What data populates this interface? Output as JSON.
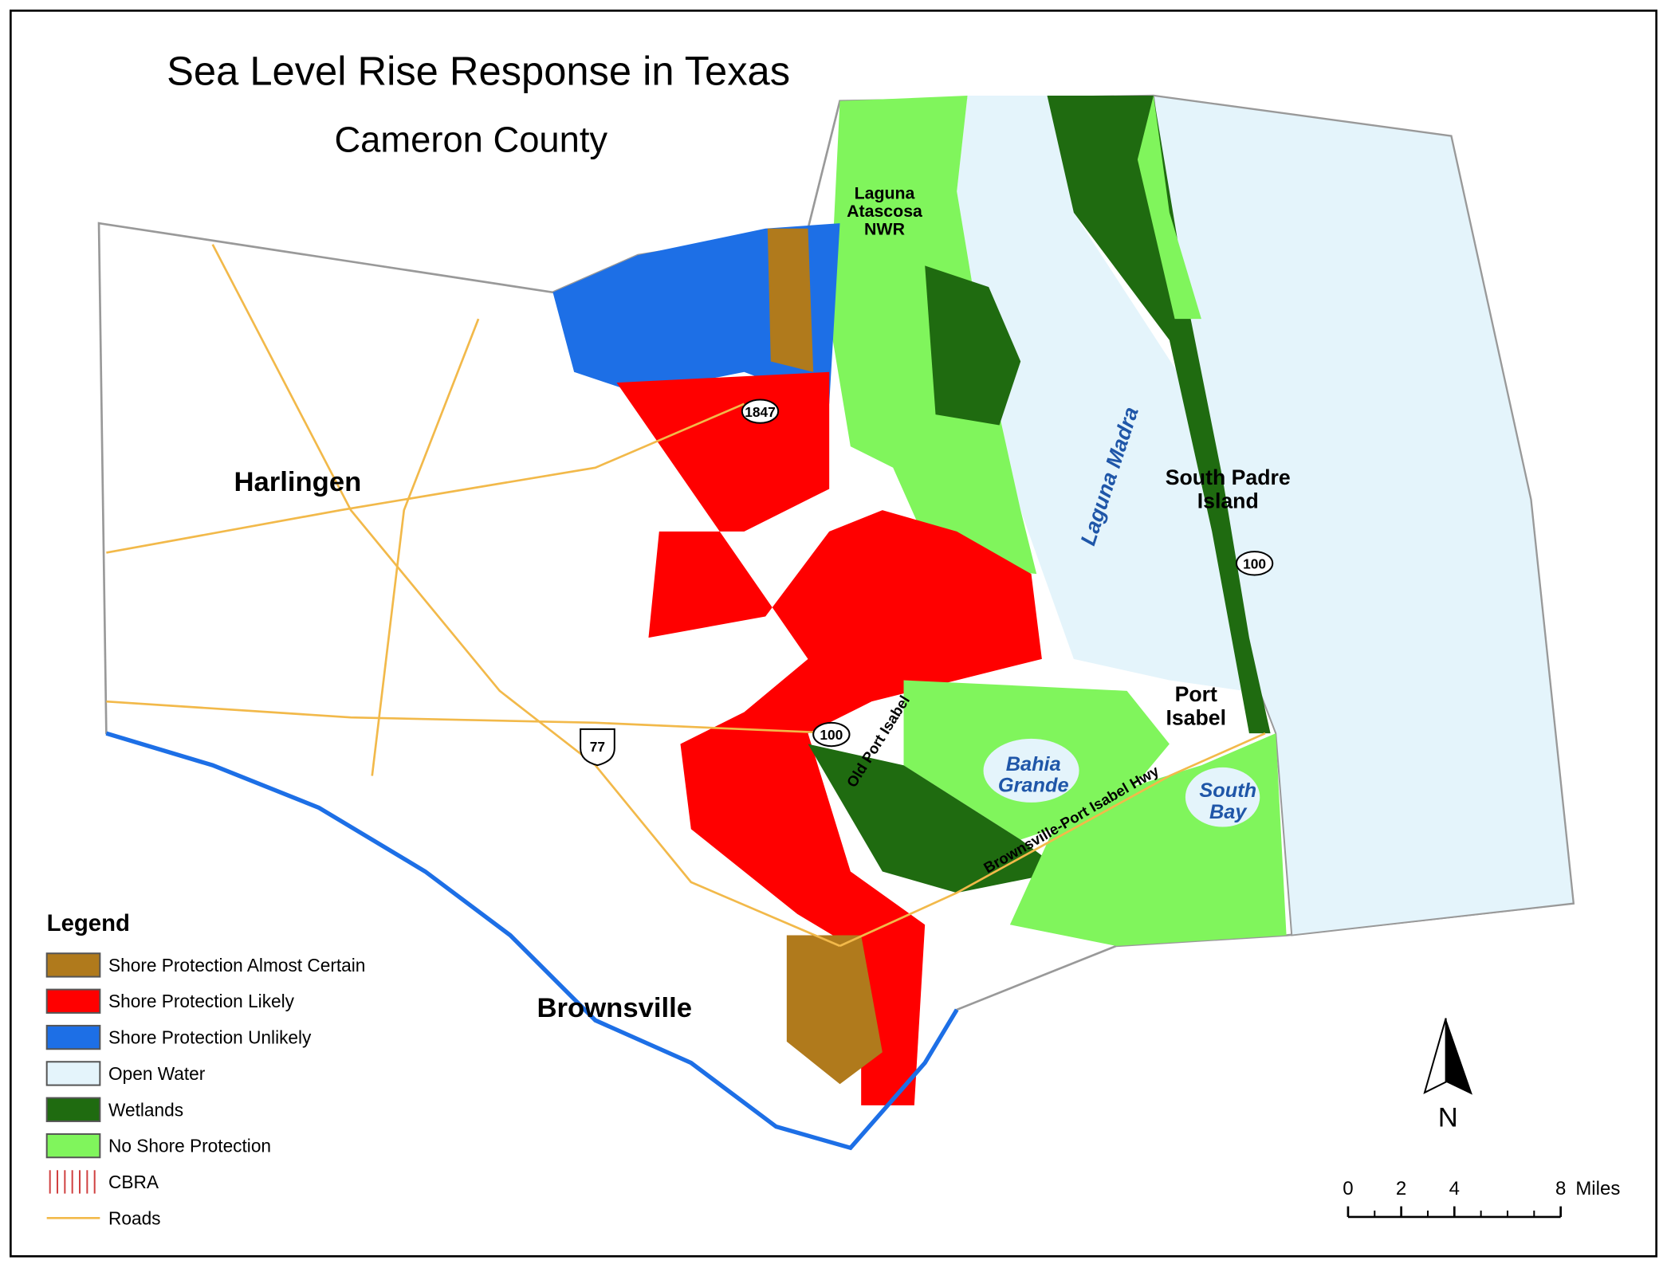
{
  "header": {
    "title": "Sea Level Rise Response in Texas",
    "subtitle": "Cameron County"
  },
  "places": [
    {
      "lines": [
        "Harlingen"
      ],
      "kind": "city"
    },
    {
      "lines": [
        "Brownsville"
      ],
      "kind": "city"
    },
    {
      "lines": [
        "Laguna",
        "Atascosa",
        "NWR"
      ],
      "kind": "area"
    },
    {
      "lines": [
        "South Padre",
        "Island"
      ],
      "kind": "area"
    },
    {
      "lines": [
        "Port",
        "Isabel"
      ],
      "kind": "town"
    },
    {
      "lines": [
        "Laguna Madra"
      ],
      "kind": "water"
    },
    {
      "lines": [
        "Bahia",
        "Grande"
      ],
      "kind": "water"
    },
    {
      "lines": [
        "South",
        "Bay"
      ],
      "kind": "water"
    },
    {
      "lines": [
        "Old Port Isabel"
      ],
      "kind": "road"
    },
    {
      "lines": [
        "Brownsville-Port Isabel Hwy"
      ],
      "kind": "road"
    }
  ],
  "shields": [
    "1847",
    "100",
    "100",
    "77"
  ],
  "legend": {
    "title": "Legend",
    "items": [
      {
        "label": "Shore Protection Almost Certain",
        "color": "#b07a1c"
      },
      {
        "label": "Shore Protection Likely",
        "color": "#ff0000"
      },
      {
        "label": "Shore Protection Unlikely",
        "color": "#1d6fe6"
      },
      {
        "label": "Open Water",
        "color": "#e4f4fb"
      },
      {
        "label": "Wetlands",
        "color": "#1f6b10"
      },
      {
        "label": "No Shore Protection",
        "color": "#80f55c"
      },
      {
        "label": "CBRA",
        "color": "#d04040"
      },
      {
        "label": "Roads",
        "color": "#f2b94a"
      }
    ]
  },
  "north_arrow": "N",
  "scale_bar": {
    "ticks": [
      "0",
      "2",
      "4",
      "8"
    ],
    "unit": "Miles"
  }
}
